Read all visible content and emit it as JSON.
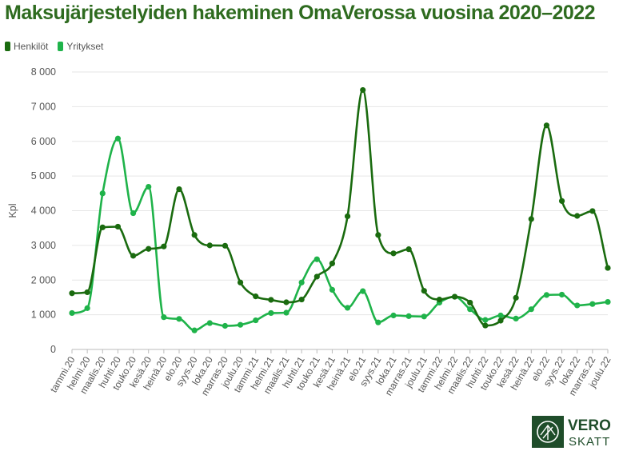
{
  "title": "Maksujärjestelyiden hakeminen OmaVerossa vuosina 2020–2022",
  "colors": {
    "henkilot": "#1a6b0f",
    "yritykset": "#1fb34a",
    "title": "#2e6b1f",
    "grid": "#e6e6e6"
  },
  "logo": {
    "text_top": "VERO",
    "text_bottom": "SKATT",
    "icon": "tax-administration-emblem-icon"
  },
  "chart_data": {
    "type": "line",
    "title": "Maksujärjestelyiden hakeminen OmaVerossa vuosina 2020–2022",
    "ylabel": "Kpl",
    "xlabel": "",
    "ylim": [
      0,
      8000
    ],
    "yticks": [
      0,
      1000,
      2000,
      3000,
      4000,
      5000,
      6000,
      7000,
      8000
    ],
    "ytick_labels": [
      "0",
      "1 000",
      "2 000",
      "3 000",
      "4 000",
      "5 000",
      "6 000",
      "7 000",
      "8 000"
    ],
    "grid": true,
    "legend_position": "top-left",
    "categories": [
      "tammi.20",
      "helmi.20",
      "maalis.20",
      "huhti.20",
      "touko.20",
      "kesä.20",
      "heinä.20",
      "elo.20",
      "syys.20",
      "loka.20",
      "marras.20",
      "joulu.20",
      "tammi.21",
      "helmi.21",
      "maalis.21",
      "huhti.21",
      "touko.21",
      "kesä.21",
      "heinä.21",
      "elo.21",
      "syys.21",
      "loka.21",
      "marras.21",
      "joulu.21",
      "tammi.22",
      "helmi.22",
      "maalis.22",
      "huhti.22",
      "touko.22",
      "kesä.22",
      "heinä.22",
      "elo.22",
      "syys.22",
      "loka.22",
      "marras.22",
      "joulu.22"
    ],
    "series": [
      {
        "name": "Henkilöt",
        "color": "#1a6b0f",
        "values": [
          1620,
          1650,
          3520,
          3540,
          2700,
          2900,
          2970,
          4620,
          3300,
          3000,
          2990,
          1930,
          1530,
          1430,
          1360,
          1440,
          2100,
          2480,
          3840,
          7480,
          3300,
          2770,
          2890,
          1690,
          1440,
          1520,
          1350,
          690,
          830,
          1490,
          3760,
          6460,
          4280,
          3850,
          3990,
          2350
        ]
      },
      {
        "name": "Yritykset",
        "color": "#1fb34a",
        "values": [
          1050,
          1190,
          4500,
          6080,
          3930,
          4690,
          930,
          880,
          550,
          760,
          680,
          710,
          840,
          1050,
          1060,
          1930,
          2600,
          1720,
          1200,
          1680,
          780,
          980,
          960,
          950,
          1350,
          1520,
          1160,
          850,
          980,
          890,
          1160,
          1570,
          1580,
          1270,
          1310,
          1370
        ]
      }
    ]
  }
}
